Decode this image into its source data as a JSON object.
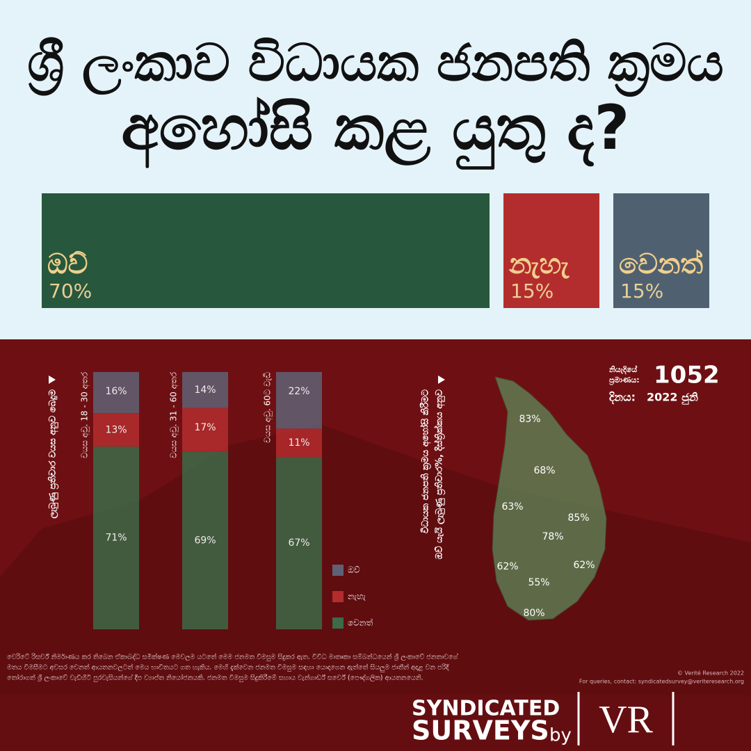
{
  "title_lines": [
    "ශ්‍රී ලංකාව විධායක ජනපති ක්‍රමය",
    "අහෝසි කළ යුතු ද?"
  ],
  "chart_data": [
    {
      "type": "strip",
      "categories": [
        "ඔව්",
        "නැහැ",
        "වෙනත්"
      ],
      "values": [
        70,
        15,
        15
      ],
      "value_labels": [
        "70%",
        "15%",
        "15%"
      ],
      "colors": [
        "#27583d",
        "#b42d2e",
        "#4f6171"
      ]
    },
    {
      "type": "stacked",
      "title": "ලැබුණු ප්‍රතිචාර වයස අනුව බෙදුම",
      "categories": [
        "වයස අවු. 18 - 30 අතර",
        "වයස අවු. 31 - 60 අතර",
        "වයස අවු. 60ට වැඩි"
      ],
      "series": [
        {
          "name": "ඔව්",
          "color": "#5f6276",
          "values": [
            16,
            14,
            22
          ],
          "value_labels": [
            "16%",
            "14%",
            "22%"
          ]
        },
        {
          "name": "නැහැ",
          "color": "#b42d2e",
          "values": [
            13,
            17,
            11
          ],
          "value_labels": [
            "13%",
            "17%",
            "11%"
          ]
        },
        {
          "name": "වෙනත්",
          "color": "#3d6a48",
          "values": [
            71,
            69,
            67
          ],
          "value_labels": [
            "71%",
            "69%",
            "67%"
          ]
        }
      ]
    },
    {
      "type": "map",
      "title_lines": [
        "විධායක ජනපති ක්‍රමය අහෝසි කිරීමට",
        "ඔව් යැයි ලැබුණු ප්‍රතිචාර%, දිස්ත්‍රික්කය අනුව"
      ],
      "values": [
        83,
        68,
        63,
        85,
        78,
        62,
        62,
        55,
        80
      ],
      "value_labels": [
        "83%",
        "68%",
        "63%",
        "85%",
        "78%",
        "62%",
        "62%",
        "55%",
        "80%"
      ],
      "color": "#5e8a5a"
    }
  ],
  "sample": {
    "label_lines": [
      "නියැදියේ",
      "ප්‍රමාණය:"
    ],
    "value": "1052"
  },
  "date": {
    "label": "දිනය:",
    "value": "2022 ජුනි"
  },
  "footer": {
    "lines": [
      "වෙරිටේ රිසර්ච් නිර්මාණය කර තිබෙන ඒකාබද්ධ සමීක්ෂණ මෙවලම යටතේ මෙම ජනමත විමසුම සිදුකර ඇත. විවිධ මාතෘකා සම්බන්ධයෙන් ශ්‍රී ලංකාවේ ජනතාවගේ",
      "මතය විමසීමට අවසර වෙනත් ආයතනවලටත් මෙය භාවිතයට ගත හැකිය. මෙහි දැක්වෙන ජනමත විමසුම සඳහා යොදාගෙන ඇත්තේ සියලුම ජාතීන් අදාළ වන පරිදි",
      "තෝරාගත් ශ්‍රී ලංකාවේ වැඩිහිටි පුරවැසියන්ගේ දීප ව්‍යාප්ත නියෝජනයකි. ජනමත විමසුම සිදුකිරීමේ සහාය වැන්ගාර්ඩ් සර්වේ (පෞද්ගලික) ආයතනයෙනි."
    ],
    "copyright": "© Verité Research 2022",
    "contact": "For queries, contact: syndicatedsurvey@veriteresearch.org"
  },
  "brand": {
    "line1": "SYNDICATED",
    "line2": "SURVEYS",
    "by": "by",
    "logo": "VR"
  }
}
